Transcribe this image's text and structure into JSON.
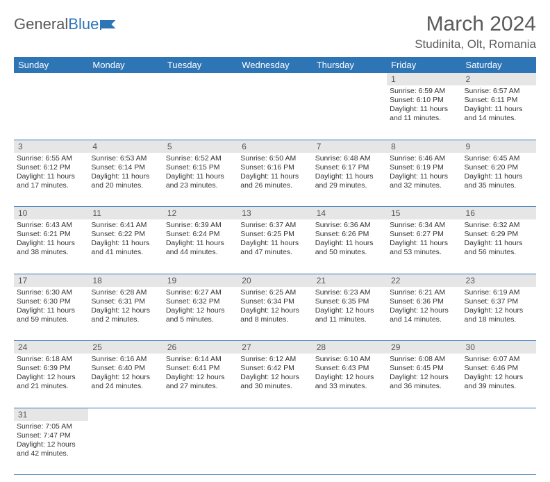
{
  "logo": {
    "text1": "General",
    "text2": "Blue"
  },
  "title": "March 2024",
  "location": "Studinita, Olt, Romania",
  "colors": {
    "header_bg": "#2e75b6",
    "header_text": "#ffffff",
    "daynum_bg": "#e6e6e6",
    "border": "#2e75b6",
    "text": "#333333"
  },
  "day_headers": [
    "Sunday",
    "Monday",
    "Tuesday",
    "Wednesday",
    "Thursday",
    "Friday",
    "Saturday"
  ],
  "weeks": [
    [
      null,
      null,
      null,
      null,
      null,
      {
        "n": "1",
        "sunrise": "6:59 AM",
        "sunset": "6:10 PM",
        "daylight": "11 hours and 11 minutes."
      },
      {
        "n": "2",
        "sunrise": "6:57 AM",
        "sunset": "6:11 PM",
        "daylight": "11 hours and 14 minutes."
      }
    ],
    [
      {
        "n": "3",
        "sunrise": "6:55 AM",
        "sunset": "6:12 PM",
        "daylight": "11 hours and 17 minutes."
      },
      {
        "n": "4",
        "sunrise": "6:53 AM",
        "sunset": "6:14 PM",
        "daylight": "11 hours and 20 minutes."
      },
      {
        "n": "5",
        "sunrise": "6:52 AM",
        "sunset": "6:15 PM",
        "daylight": "11 hours and 23 minutes."
      },
      {
        "n": "6",
        "sunrise": "6:50 AM",
        "sunset": "6:16 PM",
        "daylight": "11 hours and 26 minutes."
      },
      {
        "n": "7",
        "sunrise": "6:48 AM",
        "sunset": "6:17 PM",
        "daylight": "11 hours and 29 minutes."
      },
      {
        "n": "8",
        "sunrise": "6:46 AM",
        "sunset": "6:19 PM",
        "daylight": "11 hours and 32 minutes."
      },
      {
        "n": "9",
        "sunrise": "6:45 AM",
        "sunset": "6:20 PM",
        "daylight": "11 hours and 35 minutes."
      }
    ],
    [
      {
        "n": "10",
        "sunrise": "6:43 AM",
        "sunset": "6:21 PM",
        "daylight": "11 hours and 38 minutes."
      },
      {
        "n": "11",
        "sunrise": "6:41 AM",
        "sunset": "6:22 PM",
        "daylight": "11 hours and 41 minutes."
      },
      {
        "n": "12",
        "sunrise": "6:39 AM",
        "sunset": "6:24 PM",
        "daylight": "11 hours and 44 minutes."
      },
      {
        "n": "13",
        "sunrise": "6:37 AM",
        "sunset": "6:25 PM",
        "daylight": "11 hours and 47 minutes."
      },
      {
        "n": "14",
        "sunrise": "6:36 AM",
        "sunset": "6:26 PM",
        "daylight": "11 hours and 50 minutes."
      },
      {
        "n": "15",
        "sunrise": "6:34 AM",
        "sunset": "6:27 PM",
        "daylight": "11 hours and 53 minutes."
      },
      {
        "n": "16",
        "sunrise": "6:32 AM",
        "sunset": "6:29 PM",
        "daylight": "11 hours and 56 minutes."
      }
    ],
    [
      {
        "n": "17",
        "sunrise": "6:30 AM",
        "sunset": "6:30 PM",
        "daylight": "11 hours and 59 minutes."
      },
      {
        "n": "18",
        "sunrise": "6:28 AM",
        "sunset": "6:31 PM",
        "daylight": "12 hours and 2 minutes."
      },
      {
        "n": "19",
        "sunrise": "6:27 AM",
        "sunset": "6:32 PM",
        "daylight": "12 hours and 5 minutes."
      },
      {
        "n": "20",
        "sunrise": "6:25 AM",
        "sunset": "6:34 PM",
        "daylight": "12 hours and 8 minutes."
      },
      {
        "n": "21",
        "sunrise": "6:23 AM",
        "sunset": "6:35 PM",
        "daylight": "12 hours and 11 minutes."
      },
      {
        "n": "22",
        "sunrise": "6:21 AM",
        "sunset": "6:36 PM",
        "daylight": "12 hours and 14 minutes."
      },
      {
        "n": "23",
        "sunrise": "6:19 AM",
        "sunset": "6:37 PM",
        "daylight": "12 hours and 18 minutes."
      }
    ],
    [
      {
        "n": "24",
        "sunrise": "6:18 AM",
        "sunset": "6:39 PM",
        "daylight": "12 hours and 21 minutes."
      },
      {
        "n": "25",
        "sunrise": "6:16 AM",
        "sunset": "6:40 PM",
        "daylight": "12 hours and 24 minutes."
      },
      {
        "n": "26",
        "sunrise": "6:14 AM",
        "sunset": "6:41 PM",
        "daylight": "12 hours and 27 minutes."
      },
      {
        "n": "27",
        "sunrise": "6:12 AM",
        "sunset": "6:42 PM",
        "daylight": "12 hours and 30 minutes."
      },
      {
        "n": "28",
        "sunrise": "6:10 AM",
        "sunset": "6:43 PM",
        "daylight": "12 hours and 33 minutes."
      },
      {
        "n": "29",
        "sunrise": "6:08 AM",
        "sunset": "6:45 PM",
        "daylight": "12 hours and 36 minutes."
      },
      {
        "n": "30",
        "sunrise": "6:07 AM",
        "sunset": "6:46 PM",
        "daylight": "12 hours and 39 minutes."
      }
    ],
    [
      {
        "n": "31",
        "sunrise": "7:05 AM",
        "sunset": "7:47 PM",
        "daylight": "12 hours and 42 minutes."
      },
      null,
      null,
      null,
      null,
      null,
      null
    ]
  ],
  "labels": {
    "sunrise": "Sunrise:",
    "sunset": "Sunset:",
    "daylight": "Daylight:"
  }
}
